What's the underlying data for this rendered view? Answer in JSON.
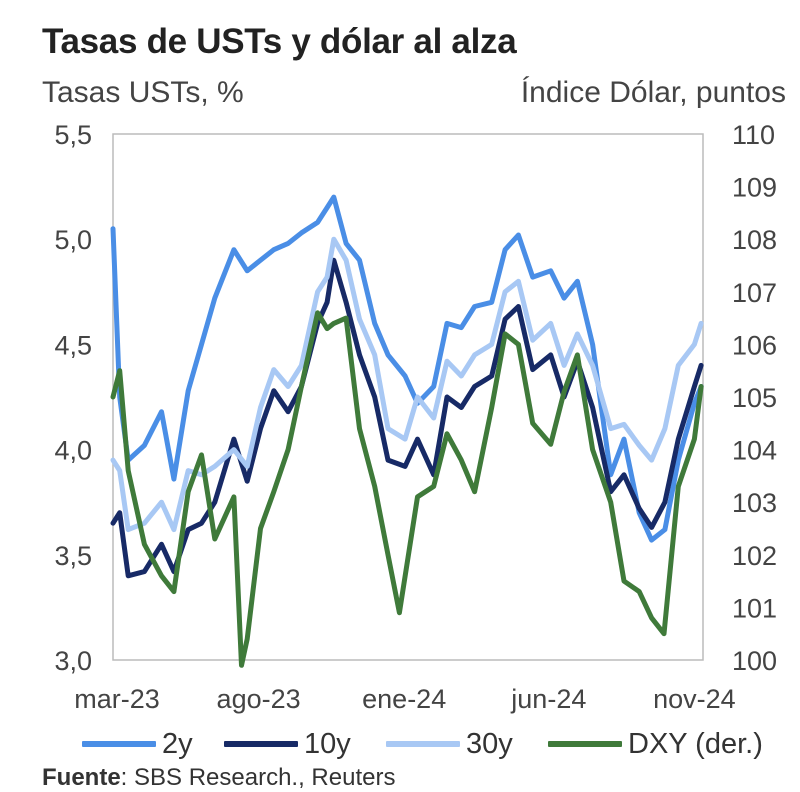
{
  "colors": {
    "2y": "#4a8ee6",
    "10y": "#172a66",
    "30y": "#a8c8f4",
    "DXY": "#3f7a3a",
    "frame": "#bbbbbb"
  },
  "source": {
    "label": "Fuente",
    "text": ": SBS Research., Reuters"
  },
  "chart_data": {
    "type": "line",
    "title": "Tasas de USTs y dólar al alza",
    "ylabel": "Tasas USTs, %",
    "y2label": "Índice Dólar, puntos",
    "ylim": [
      3.0,
      5.5
    ],
    "y2lim": [
      100,
      110
    ],
    "yticks": [
      "3,0",
      "3,5",
      "4,0",
      "4,5",
      "5,0",
      "5,5"
    ],
    "y2ticks": [
      "100",
      "101",
      "102",
      "103",
      "104",
      "105",
      "106",
      "107",
      "108",
      "109",
      "110"
    ],
    "xlim": [
      "2023-03-01",
      "2024-11-10"
    ],
    "xticks": [
      {
        "label": "mar-23",
        "date": "2023-03-01"
      },
      {
        "label": "ago-23",
        "date": "2023-08-01"
      },
      {
        "label": "ene-24",
        "date": "2024-01-01"
      },
      {
        "label": "jun-24",
        "date": "2024-06-01"
      },
      {
        "label": "nov-24",
        "date": "2024-11-01"
      }
    ],
    "grid": false,
    "legend_position": "bottom",
    "series": [
      {
        "name": "2y",
        "axis": "left",
        "points": [
          [
            "2023-03-01",
            5.05
          ],
          [
            "2023-03-08",
            4.25
          ],
          [
            "2023-03-17",
            3.95
          ],
          [
            "2023-04-03",
            4.02
          ],
          [
            "2023-04-21",
            4.18
          ],
          [
            "2023-05-04",
            3.86
          ],
          [
            "2023-05-19",
            4.28
          ],
          [
            "2023-06-02",
            4.5
          ],
          [
            "2023-06-16",
            4.72
          ],
          [
            "2023-07-06",
            4.95
          ],
          [
            "2023-07-20",
            4.85
          ],
          [
            "2023-08-03",
            4.9
          ],
          [
            "2023-08-17",
            4.95
          ],
          [
            "2023-09-01",
            4.98
          ],
          [
            "2023-09-15",
            5.03
          ],
          [
            "2023-10-02",
            5.08
          ],
          [
            "2023-10-12",
            5.15
          ],
          [
            "2023-10-19",
            5.2
          ],
          [
            "2023-11-01",
            4.98
          ],
          [
            "2023-11-15",
            4.9
          ],
          [
            "2023-12-01",
            4.6
          ],
          [
            "2023-12-15",
            4.45
          ],
          [
            "2024-01-02",
            4.35
          ],
          [
            "2024-01-15",
            4.22
          ],
          [
            "2024-02-01",
            4.3
          ],
          [
            "2024-02-15",
            4.6
          ],
          [
            "2024-03-01",
            4.58
          ],
          [
            "2024-03-15",
            4.68
          ],
          [
            "2024-04-02",
            4.7
          ],
          [
            "2024-04-16",
            4.95
          ],
          [
            "2024-04-30",
            5.02
          ],
          [
            "2024-05-15",
            4.82
          ],
          [
            "2024-06-03",
            4.85
          ],
          [
            "2024-06-17",
            4.72
          ],
          [
            "2024-07-01",
            4.8
          ],
          [
            "2024-07-17",
            4.5
          ],
          [
            "2024-08-05",
            3.88
          ],
          [
            "2024-08-19",
            4.05
          ],
          [
            "2024-09-04",
            3.7
          ],
          [
            "2024-09-17",
            3.57
          ],
          [
            "2024-10-01",
            3.62
          ],
          [
            "2024-10-15",
            3.95
          ],
          [
            "2024-11-01",
            4.22
          ],
          [
            "2024-11-08",
            4.3
          ]
        ]
      },
      {
        "name": "10y",
        "axis": "left",
        "points": [
          [
            "2023-03-01",
            3.65
          ],
          [
            "2023-03-08",
            3.7
          ],
          [
            "2023-03-17",
            3.4
          ],
          [
            "2023-04-03",
            3.42
          ],
          [
            "2023-04-21",
            3.55
          ],
          [
            "2023-05-04",
            3.42
          ],
          [
            "2023-05-19",
            3.62
          ],
          [
            "2023-06-02",
            3.65
          ],
          [
            "2023-06-16",
            3.75
          ],
          [
            "2023-07-06",
            4.05
          ],
          [
            "2023-07-20",
            3.85
          ],
          [
            "2023-08-03",
            4.1
          ],
          [
            "2023-08-17",
            4.28
          ],
          [
            "2023-09-01",
            4.18
          ],
          [
            "2023-09-15",
            4.3
          ],
          [
            "2023-10-02",
            4.6
          ],
          [
            "2023-10-12",
            4.7
          ],
          [
            "2023-10-19",
            4.9
          ],
          [
            "2023-11-01",
            4.7
          ],
          [
            "2023-11-15",
            4.45
          ],
          [
            "2023-12-01",
            4.25
          ],
          [
            "2023-12-15",
            3.95
          ],
          [
            "2024-01-02",
            3.92
          ],
          [
            "2024-01-15",
            4.05
          ],
          [
            "2024-02-01",
            3.88
          ],
          [
            "2024-02-15",
            4.25
          ],
          [
            "2024-03-01",
            4.2
          ],
          [
            "2024-03-15",
            4.3
          ],
          [
            "2024-04-02",
            4.35
          ],
          [
            "2024-04-16",
            4.62
          ],
          [
            "2024-04-30",
            4.68
          ],
          [
            "2024-05-15",
            4.38
          ],
          [
            "2024-06-03",
            4.45
          ],
          [
            "2024-06-17",
            4.25
          ],
          [
            "2024-07-01",
            4.42
          ],
          [
            "2024-07-17",
            4.2
          ],
          [
            "2024-08-05",
            3.8
          ],
          [
            "2024-08-19",
            3.88
          ],
          [
            "2024-09-04",
            3.72
          ],
          [
            "2024-09-17",
            3.63
          ],
          [
            "2024-10-01",
            3.75
          ],
          [
            "2024-10-15",
            4.05
          ],
          [
            "2024-11-01",
            4.3
          ],
          [
            "2024-11-08",
            4.4
          ]
        ]
      },
      {
        "name": "30y",
        "axis": "left",
        "points": [
          [
            "2023-03-01",
            3.95
          ],
          [
            "2023-03-08",
            3.9
          ],
          [
            "2023-03-17",
            3.62
          ],
          [
            "2023-04-03",
            3.65
          ],
          [
            "2023-04-21",
            3.75
          ],
          [
            "2023-05-04",
            3.62
          ],
          [
            "2023-05-19",
            3.9
          ],
          [
            "2023-06-02",
            3.88
          ],
          [
            "2023-06-16",
            3.92
          ],
          [
            "2023-07-06",
            4.0
          ],
          [
            "2023-07-20",
            3.92
          ],
          [
            "2023-08-03",
            4.2
          ],
          [
            "2023-08-17",
            4.38
          ],
          [
            "2023-09-01",
            4.3
          ],
          [
            "2023-09-15",
            4.4
          ],
          [
            "2023-10-02",
            4.75
          ],
          [
            "2023-10-12",
            4.82
          ],
          [
            "2023-10-19",
            5.0
          ],
          [
            "2023-11-01",
            4.9
          ],
          [
            "2023-11-15",
            4.62
          ],
          [
            "2023-12-01",
            4.45
          ],
          [
            "2023-12-15",
            4.1
          ],
          [
            "2024-01-02",
            4.05
          ],
          [
            "2024-01-15",
            4.25
          ],
          [
            "2024-02-01",
            4.15
          ],
          [
            "2024-02-15",
            4.42
          ],
          [
            "2024-03-01",
            4.35
          ],
          [
            "2024-03-15",
            4.45
          ],
          [
            "2024-04-02",
            4.5
          ],
          [
            "2024-04-16",
            4.75
          ],
          [
            "2024-04-30",
            4.8
          ],
          [
            "2024-05-15",
            4.52
          ],
          [
            "2024-06-03",
            4.6
          ],
          [
            "2024-06-17",
            4.4
          ],
          [
            "2024-07-01",
            4.55
          ],
          [
            "2024-07-17",
            4.4
          ],
          [
            "2024-08-05",
            4.1
          ],
          [
            "2024-08-19",
            4.12
          ],
          [
            "2024-09-04",
            4.02
          ],
          [
            "2024-09-17",
            3.95
          ],
          [
            "2024-10-01",
            4.1
          ],
          [
            "2024-10-15",
            4.4
          ],
          [
            "2024-11-01",
            4.5
          ],
          [
            "2024-11-08",
            4.6
          ]
        ]
      },
      {
        "name": "DXY (der.)",
        "axis": "right",
        "points": [
          [
            "2023-03-01",
            105.0
          ],
          [
            "2023-03-08",
            105.5
          ],
          [
            "2023-03-17",
            103.6
          ],
          [
            "2023-04-03",
            102.2
          ],
          [
            "2023-04-21",
            101.6
          ],
          [
            "2023-05-04",
            101.3
          ],
          [
            "2023-05-19",
            103.2
          ],
          [
            "2023-06-02",
            103.9
          ],
          [
            "2023-06-16",
            102.3
          ],
          [
            "2023-07-06",
            103.1
          ],
          [
            "2023-07-14",
            99.9
          ],
          [
            "2023-07-20",
            100.4
          ],
          [
            "2023-08-03",
            102.5
          ],
          [
            "2023-08-17",
            103.2
          ],
          [
            "2023-09-01",
            104.0
          ],
          [
            "2023-09-15",
            105.2
          ],
          [
            "2023-10-02",
            106.6
          ],
          [
            "2023-10-12",
            106.3
          ],
          [
            "2023-10-19",
            106.4
          ],
          [
            "2023-11-01",
            106.5
          ],
          [
            "2023-11-15",
            104.4
          ],
          [
            "2023-12-01",
            103.3
          ],
          [
            "2023-12-15",
            102.0
          ],
          [
            "2023-12-27",
            100.9
          ],
          [
            "2024-01-15",
            103.1
          ],
          [
            "2024-02-01",
            103.3
          ],
          [
            "2024-02-15",
            104.3
          ],
          [
            "2024-03-01",
            103.8
          ],
          [
            "2024-03-15",
            103.2
          ],
          [
            "2024-04-02",
            104.8
          ],
          [
            "2024-04-16",
            106.2
          ],
          [
            "2024-04-30",
            106.0
          ],
          [
            "2024-05-15",
            104.5
          ],
          [
            "2024-06-03",
            104.1
          ],
          [
            "2024-06-17",
            105.1
          ],
          [
            "2024-07-01",
            105.8
          ],
          [
            "2024-07-17",
            104.0
          ],
          [
            "2024-08-05",
            103.0
          ],
          [
            "2024-08-19",
            101.5
          ],
          [
            "2024-09-04",
            101.3
          ],
          [
            "2024-09-17",
            100.8
          ],
          [
            "2024-09-30",
            100.5
          ],
          [
            "2024-10-15",
            103.3
          ],
          [
            "2024-11-01",
            104.2
          ],
          [
            "2024-11-08",
            105.2
          ]
        ]
      }
    ]
  }
}
